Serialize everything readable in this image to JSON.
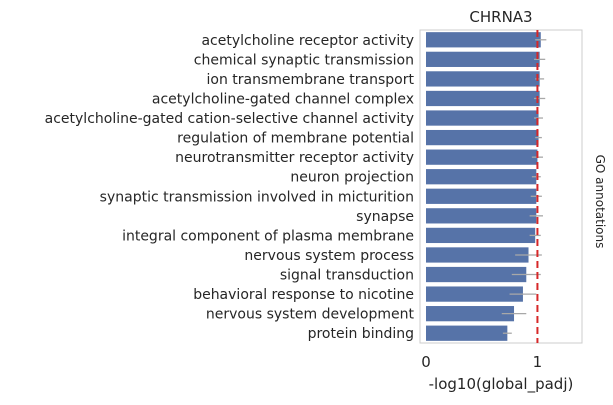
{
  "chart_data": {
    "type": "bar",
    "orientation": "horizontal",
    "title": "CHRNA3",
    "xlabel": "-log10(global_padj)",
    "ylabel": "GO annotations",
    "xlim": [
      0,
      1.4
    ],
    "xticks": [
      0,
      1
    ],
    "threshold_line": 1,
    "grid": false,
    "colors": {
      "bar": "#5673a8",
      "error": "#a8a8a8",
      "threshold": "#d62728",
      "frame": "#cccccc"
    },
    "categories": [
      "acetylcholine receptor activity",
      "chemical synaptic transmission",
      "ion transmembrane transport",
      "acetylcholine-gated channel complex",
      "acetylcholine-gated cation-selective channel activity",
      "regulation of membrane potential",
      "neurotransmitter receptor activity",
      "neuron projection",
      "synaptic transmission involved in micturition",
      "synapse",
      "integral component of plasma membrane",
      "nervous system process",
      "signal transduction",
      "behavioral response to nicotine",
      "nervous system development",
      "protein binding"
    ],
    "values": [
      1.03,
      1.02,
      1.02,
      1.02,
      1.01,
      1.01,
      1.0,
      0.99,
      0.99,
      0.99,
      0.98,
      0.92,
      0.9,
      0.87,
      0.79,
      0.73
    ],
    "error": [
      0.05,
      0.05,
      0.04,
      0.05,
      0.04,
      0.03,
      0.05,
      0.04,
      0.05,
      0.06,
      0.05,
      0.12,
      0.13,
      0.12,
      0.11,
      0.04
    ]
  }
}
